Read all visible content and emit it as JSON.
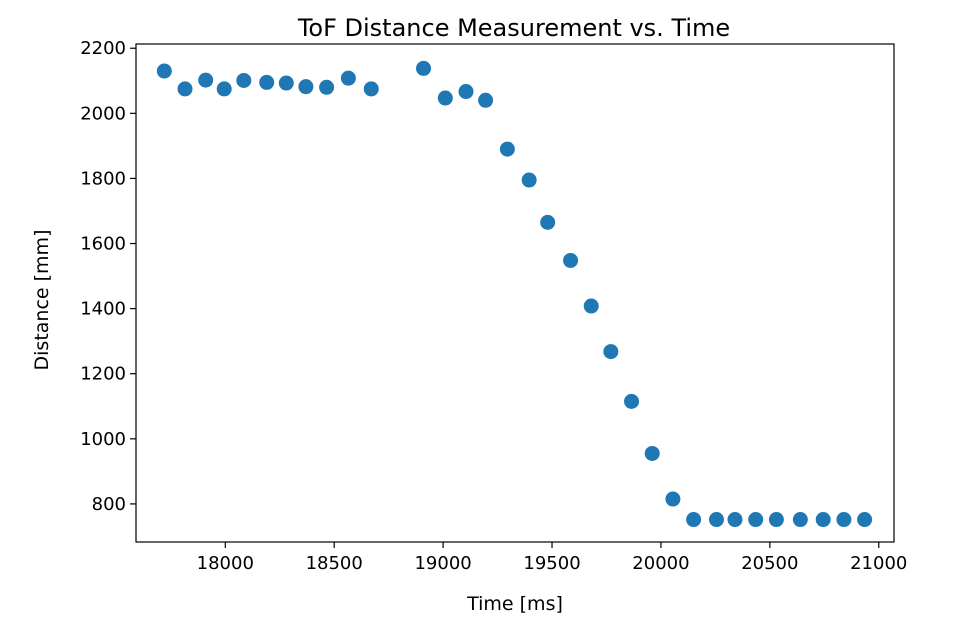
{
  "chart_data": {
    "type": "scatter",
    "title": "ToF Distance Measurement vs. Time",
    "xlabel": "Time [ms]",
    "ylabel": "Distance [mm]",
    "xlim": [
      17590,
      21070
    ],
    "ylim": [
      683,
      2213
    ],
    "xticks": [
      18000,
      18500,
      19000,
      19500,
      20000,
      20500,
      21000
    ],
    "yticks": [
      800,
      1000,
      1200,
      1400,
      1600,
      1800,
      2000,
      2200
    ],
    "grid": false,
    "legend": "none",
    "marker_color": "#1f77b4",
    "series": [
      {
        "x": [
          17720,
          17815,
          17910,
          17995,
          18085,
          18190,
          18280,
          18370,
          18465,
          18565,
          18670,
          18910,
          19010,
          19105,
          19195,
          19295,
          19395,
          19480,
          19585,
          19680,
          19770,
          19865,
          19960,
          20055,
          20150,
          20255,
          20340,
          20435,
          20530,
          20640,
          20745,
          20840,
          20935
        ],
        "y": [
          2130,
          2075,
          2102,
          2075,
          2101,
          2095,
          2093,
          2082,
          2080,
          2108,
          2075,
          2138,
          2047,
          2067,
          2040,
          1890,
          1795,
          1665,
          1548,
          1408,
          1268,
          1115,
          955,
          815,
          752,
          752,
          752,
          752,
          752,
          752,
          752,
          752,
          752
        ]
      }
    ]
  }
}
